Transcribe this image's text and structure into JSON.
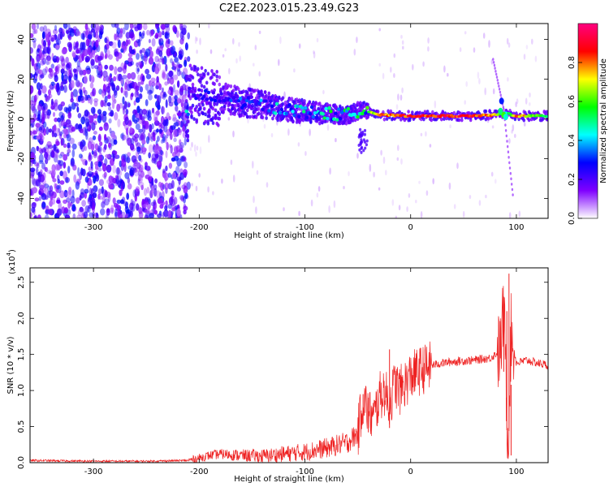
{
  "title": "C2E2.2023.015.23.49.G23",
  "chart_data": [
    {
      "type": "heatmap",
      "xlabel": "Height of straight line (km)",
      "ylabel": "Frequency (Hz)",
      "xlim": [
        -360,
        130
      ],
      "ylim": [
        -50,
        48
      ],
      "xticks": [
        -300,
        -200,
        -100,
        0,
        100
      ],
      "xtick_labels": [
        "-300",
        "-200",
        "-100",
        "0",
        "100"
      ],
      "yticks": [
        -40,
        -20,
        0,
        20,
        40
      ],
      "ytick_labels": [
        "-40",
        "-20",
        "0",
        "20",
        "40"
      ],
      "grid": false,
      "colorbar": {
        "label": "Normalized spectral amplitude",
        "range": [
          0.0,
          1.0
        ],
        "ticks": [
          0.0,
          0.2,
          0.4,
          0.6,
          0.8
        ],
        "tick_labels": [
          "0.0",
          "0.2",
          "0.4",
          "0.6",
          "0.8"
        ],
        "colormap": [
          "#ffffff",
          "#7f00ff",
          "#0000ff",
          "#00ffff",
          "#00ff00",
          "#ffff00",
          "#ff0000",
          "#ff0080"
        ]
      },
      "features": {
        "noise_region_x": [
          -360,
          -210
        ],
        "track": [
          {
            "x": -210,
            "y": 13,
            "amp": 0.25
          },
          {
            "x": -180,
            "y": 10,
            "amp": 0.3
          },
          {
            "x": -150,
            "y": 8,
            "amp": 0.35
          },
          {
            "x": -120,
            "y": 5,
            "amp": 0.45
          },
          {
            "x": -90,
            "y": 3,
            "amp": 0.5
          },
          {
            "x": -60,
            "y": 2,
            "amp": 0.55
          },
          {
            "x": -45,
            "y": 5,
            "amp": 0.5
          },
          {
            "x": -30,
            "y": 2,
            "amp": 0.8
          },
          {
            "x": 0,
            "y": 1.5,
            "amp": 0.9
          },
          {
            "x": 60,
            "y": 1.5,
            "amp": 0.9
          },
          {
            "x": 80,
            "y": 2,
            "amp": 0.8
          },
          {
            "x": 90,
            "y": 3,
            "amp": 0.4
          },
          {
            "x": 100,
            "y": 1.5,
            "amp": 0.85
          },
          {
            "x": 130,
            "y": 1.5,
            "amp": 0.5
          }
        ],
        "streak": [
          {
            "x": 78,
            "y": 30
          },
          {
            "x": 88,
            "y": 5
          },
          {
            "x": 97,
            "y": -40
          }
        ]
      }
    },
    {
      "type": "line",
      "xlabel": "Height of straight line (km)",
      "ylabel": "SNR (10 * v/v)",
      "multiplier": "(x10",
      "multiplier_exp": "4",
      "multiplier_close": ")",
      "xlim": [
        -360,
        130
      ],
      "ylim": [
        0,
        2.7
      ],
      "xticks": [
        -300,
        -200,
        -100,
        0,
        100
      ],
      "xtick_labels": [
        "-300",
        "-200",
        "-100",
        "0",
        "100"
      ],
      "yticks": [
        0.0,
        0.5,
        1.0,
        1.5,
        2.0,
        2.5
      ],
      "ytick_labels": [
        "0.0",
        "0.5",
        "1.0",
        "1.5",
        "2.0",
        "2.5"
      ],
      "grid": false,
      "color": "#ee2222",
      "x": [
        -360,
        -300,
        -250,
        -210,
        -190,
        -180,
        -160,
        -140,
        -120,
        -100,
        -80,
        -60,
        -50,
        -45,
        -40,
        -35,
        -30,
        -25,
        -20,
        -15,
        -10,
        0,
        10,
        20,
        30,
        40,
        60,
        75,
        85,
        88,
        90,
        92,
        95,
        100,
        110,
        120,
        130
      ],
      "y": [
        0.03,
        0.02,
        0.02,
        0.03,
        0.1,
        0.12,
        0.1,
        0.09,
        0.12,
        0.15,
        0.2,
        0.28,
        0.4,
        0.9,
        0.7,
        0.6,
        0.9,
        1.0,
        0.8,
        1.1,
        1.0,
        1.2,
        1.28,
        1.35,
        1.38,
        1.4,
        1.42,
        1.45,
        1.55,
        2.1,
        1.3,
        0.2,
        1.8,
        1.38,
        1.42,
        1.38,
        1.35
      ],
      "spikes": [
        {
          "x": -45,
          "y": 0.95
        },
        {
          "x": -40,
          "y": 0.9
        },
        {
          "x": -20,
          "y": 1.57
        },
        {
          "x": 88,
          "y": 2.3
        },
        {
          "x": 91,
          "y": 2.1
        },
        {
          "x": 93,
          "y": 2.62
        },
        {
          "x": 95,
          "y": 0.1
        }
      ]
    }
  ]
}
